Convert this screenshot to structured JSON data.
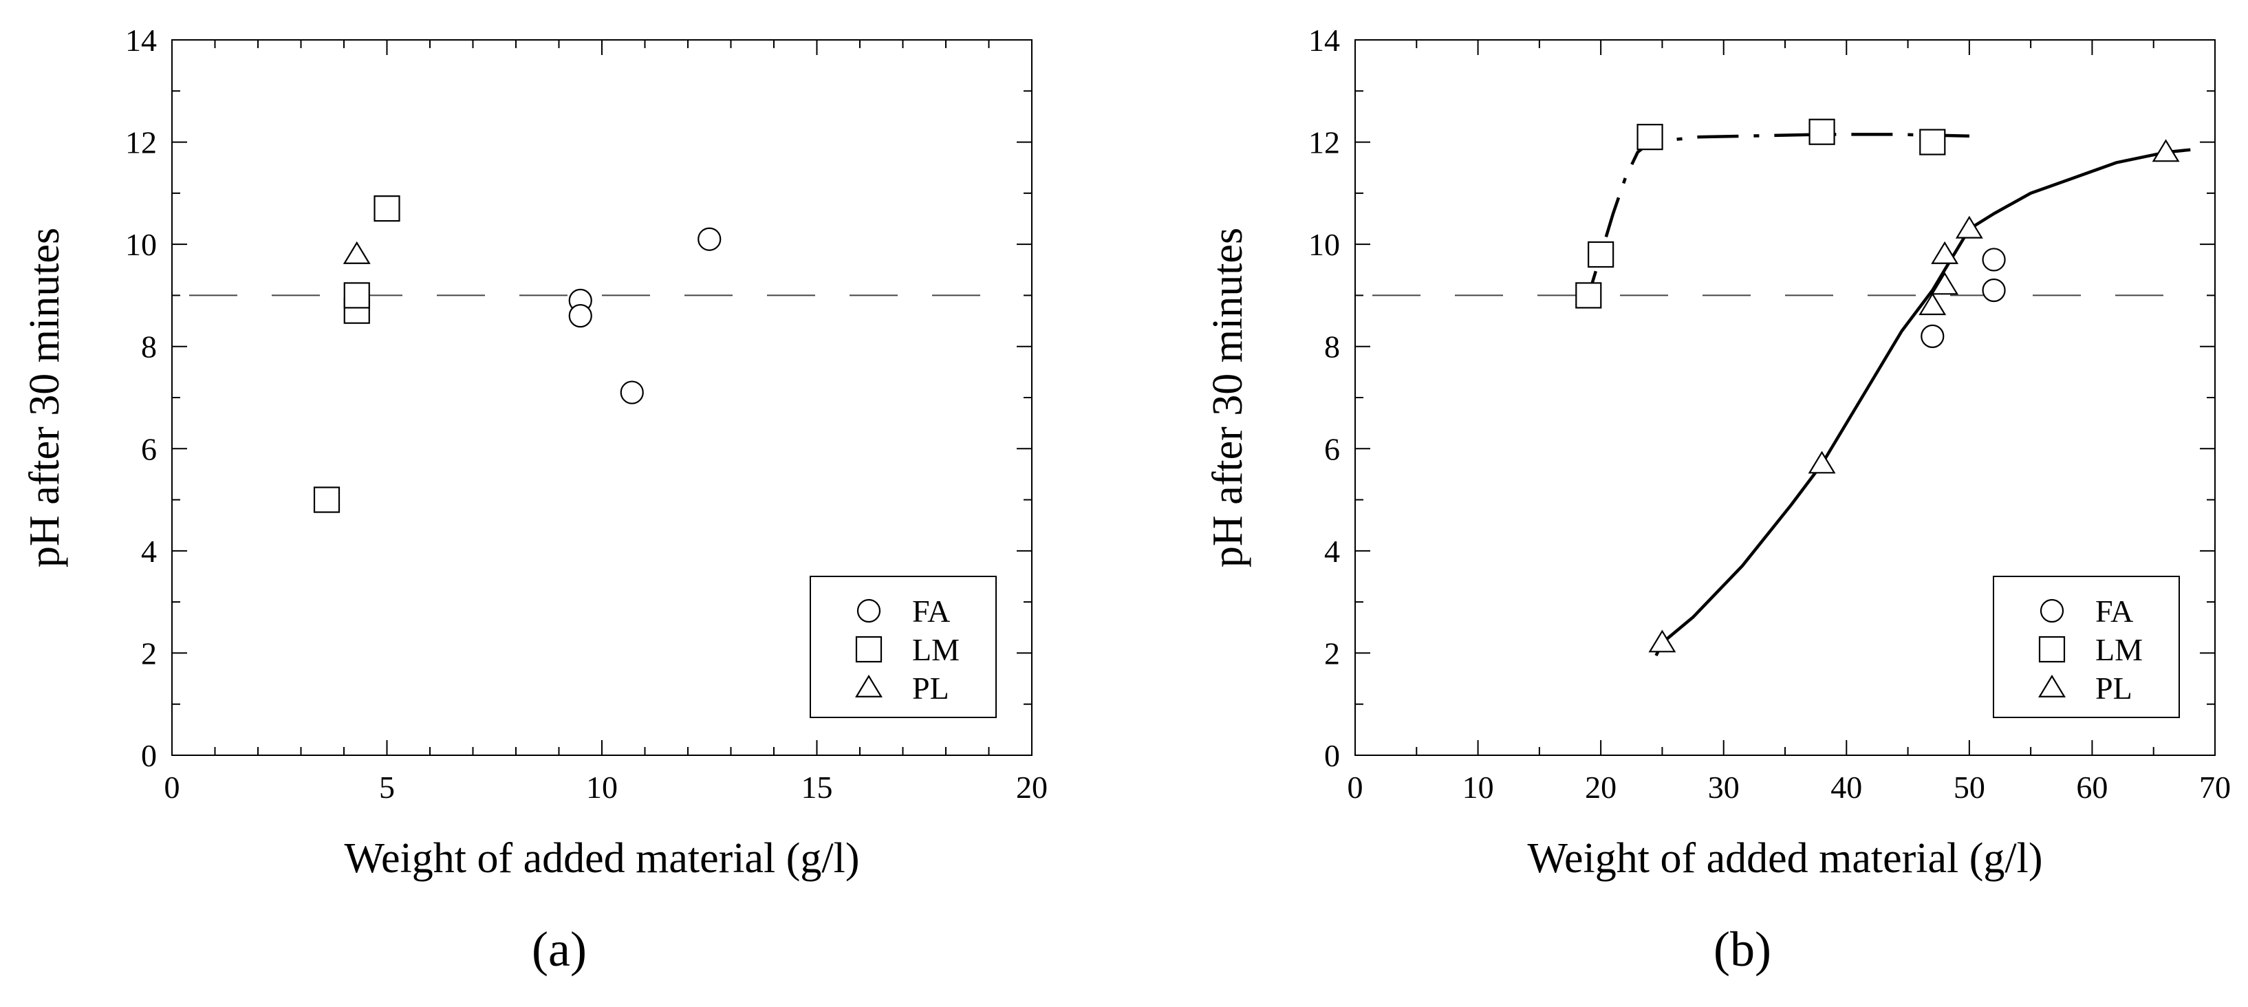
{
  "chart_data": [
    {
      "type": "scatter",
      "panel_label": "(a)",
      "xlabel": "Weight of added material   (g/l)",
      "ylabel": "pH after 30 minutes",
      "xlim": [
        0,
        20
      ],
      "ylim": [
        0,
        14
      ],
      "x_ticks": [
        0,
        5,
        10,
        15,
        20
      ],
      "y_ticks": [
        0,
        2,
        4,
        6,
        8,
        10,
        12,
        14
      ],
      "grid": false,
      "reference_line": {
        "y": 9,
        "style": "dashed"
      },
      "legend": {
        "placement": "bottom-right",
        "entries": [
          "FA",
          "LM",
          "PL"
        ]
      },
      "series": [
        {
          "name": "FA",
          "marker": "circle",
          "points": [
            [
              9.5,
              8.9
            ],
            [
              9.5,
              8.6
            ],
            [
              10.7,
              7.1
            ],
            [
              12.5,
              10.1
            ]
          ]
        },
        {
          "name": "LM",
          "marker": "square",
          "points": [
            [
              3.6,
              5.0
            ],
            [
              4.3,
              8.7
            ],
            [
              4.3,
              9.0
            ],
            [
              5.0,
              10.7
            ]
          ]
        },
        {
          "name": "PL",
          "marker": "triangle",
          "points": [
            [
              4.3,
              9.8
            ]
          ]
        }
      ],
      "curves": []
    },
    {
      "type": "scatter",
      "panel_label": "(b)",
      "xlabel": "Weight of added material   (g/l)",
      "ylabel": "pH after 30 minutes",
      "xlim": [
        0,
        70
      ],
      "ylim": [
        0,
        14
      ],
      "x_ticks": [
        0,
        10,
        20,
        30,
        40,
        50,
        60,
        70
      ],
      "y_ticks": [
        0,
        2,
        4,
        6,
        8,
        10,
        12,
        14
      ],
      "grid": false,
      "reference_line": {
        "y": 9,
        "style": "dashed"
      },
      "legend": {
        "placement": "bottom-right",
        "entries": [
          "FA",
          "LM",
          "PL"
        ]
      },
      "series": [
        {
          "name": "FA",
          "marker": "circle",
          "points": [
            [
              47,
              8.2
            ],
            [
              52,
              9.1
            ],
            [
              52,
              9.7
            ]
          ]
        },
        {
          "name": "LM",
          "marker": "square",
          "points": [
            [
              19,
              9.0
            ],
            [
              20,
              9.8
            ],
            [
              24,
              12.1
            ],
            [
              38,
              12.2
            ],
            [
              47,
              12.0
            ]
          ]
        },
        {
          "name": "PL",
          "marker": "triangle",
          "points": [
            [
              25,
              2.2
            ],
            [
              38,
              5.7
            ],
            [
              47,
              8.8
            ],
            [
              48,
              9.8
            ],
            [
              48,
              9.2
            ],
            [
              50,
              10.3
            ],
            [
              66,
              11.8
            ]
          ]
        }
      ],
      "curves": [
        {
          "series": "LM",
          "style": "dash-dot",
          "points": [
            [
              18,
              8.8
            ],
            [
              19,
              9.0
            ],
            [
              20,
              9.8
            ],
            [
              21,
              10.6
            ],
            [
              22,
              11.3
            ],
            [
              23,
              11.8
            ],
            [
              24,
              12.0
            ],
            [
              26,
              12.05
            ],
            [
              28,
              12.1
            ],
            [
              32,
              12.12
            ],
            [
              38,
              12.15
            ],
            [
              44,
              12.15
            ],
            [
              50,
              12.12
            ]
          ]
        },
        {
          "series": "PL",
          "style": "solid",
          "points": [
            [
              24.5,
              1.95
            ],
            [
              25,
              2.2
            ],
            [
              27.5,
              2.7
            ],
            [
              31.5,
              3.7
            ],
            [
              35.5,
              4.9
            ],
            [
              38,
              5.7
            ],
            [
              41.5,
              7.1
            ],
            [
              44.5,
              8.3
            ],
            [
              47,
              9.1
            ],
            [
              48,
              9.5
            ],
            [
              50,
              10.3
            ],
            [
              52,
              10.6
            ],
            [
              55,
              11.0
            ],
            [
              58.5,
              11.3
            ],
            [
              62,
              11.6
            ],
            [
              66,
              11.8
            ],
            [
              68,
              11.85
            ]
          ]
        }
      ]
    }
  ]
}
